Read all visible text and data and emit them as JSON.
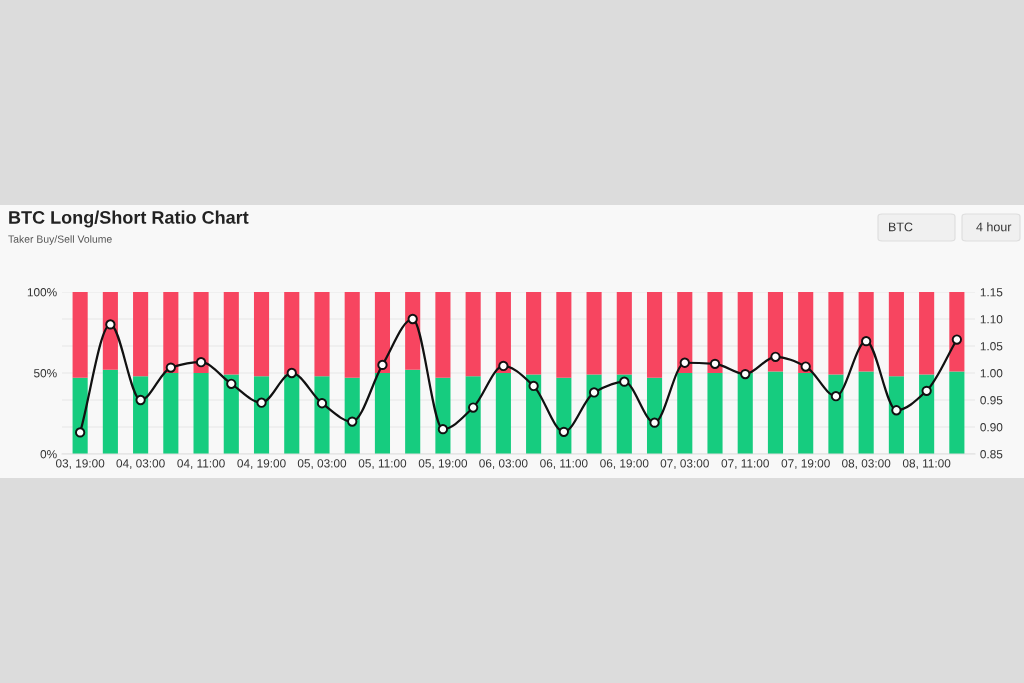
{
  "chart_data": {
    "type": "bar",
    "title": "BTC Long/Short Ratio Chart",
    "subtitle": "Taker Buy/Sell Volume",
    "annotations": [
      "BTC",
      "4 hour"
    ],
    "categories": [
      "03, 19:00",
      null,
      "04, 03:00",
      null,
      "04, 11:00",
      null,
      "04, 19:00",
      null,
      "05, 03:00",
      null,
      "05, 11:00",
      null,
      "05, 19:00",
      null,
      "06, 03:00",
      null,
      "06, 11:00",
      null,
      "06, 19:00",
      null,
      "07, 03:00",
      null,
      "07, 11:00",
      null,
      "07, 19:00",
      null,
      "08, 03:00",
      null,
      "08, 11:00",
      null
    ],
    "stacked": true,
    "series": [
      {
        "color": "#16cc7f",
        "values": [
          47,
          52,
          48,
          50,
          50,
          49,
          48,
          49,
          48,
          47,
          50,
          52,
          47,
          48,
          50,
          49,
          47,
          49,
          49,
          47,
          50,
          50,
          50,
          51,
          50,
          49,
          51,
          48,
          49,
          51
        ]
      },
      {
        "color": "#f74560",
        "values": [
          53,
          48,
          52,
          50,
          50,
          51,
          52,
          51,
          52,
          53,
          50,
          48,
          53,
          52,
          50,
          51,
          53,
          51,
          51,
          53,
          50,
          50,
          50,
          49,
          50,
          51,
          49,
          52,
          51,
          49
        ]
      },
      {
        "type": "line",
        "axis": "y2",
        "color": "#111111",
        "marker": "circle",
        "values": [
          0.89,
          1.09,
          0.95,
          1.01,
          1.02,
          0.98,
          0.945,
          1.0,
          0.944,
          0.91,
          1.015,
          1.1,
          0.896,
          0.936,
          1.013,
          0.976,
          0.891,
          0.964,
          0.984,
          0.908,
          1.019,
          1.017,
          0.998,
          1.03,
          1.012,
          0.957,
          1.059,
          0.931,
          0.967,
          1.062
        ]
      }
    ],
    "ylim": [
      0,
      100
    ],
    "yticks": [
      {
        "value": 0,
        "label": "0%"
      },
      {
        "value": 50,
        "label": "50%"
      },
      {
        "value": 100,
        "label": "100%"
      }
    ],
    "y2lim": [
      0.85,
      1.15
    ],
    "y2ticks": [
      {
        "value": 0.85,
        "label": "0.85"
      },
      {
        "value": 0.9,
        "label": "0.90"
      },
      {
        "value": 0.95,
        "label": "0.95"
      },
      {
        "value": 1.0,
        "label": "1.00"
      },
      {
        "value": 1.05,
        "label": "1.05"
      },
      {
        "value": 1.1,
        "label": "1.10"
      },
      {
        "value": 1.15,
        "label": "1.15"
      }
    ],
    "grid": "y"
  }
}
